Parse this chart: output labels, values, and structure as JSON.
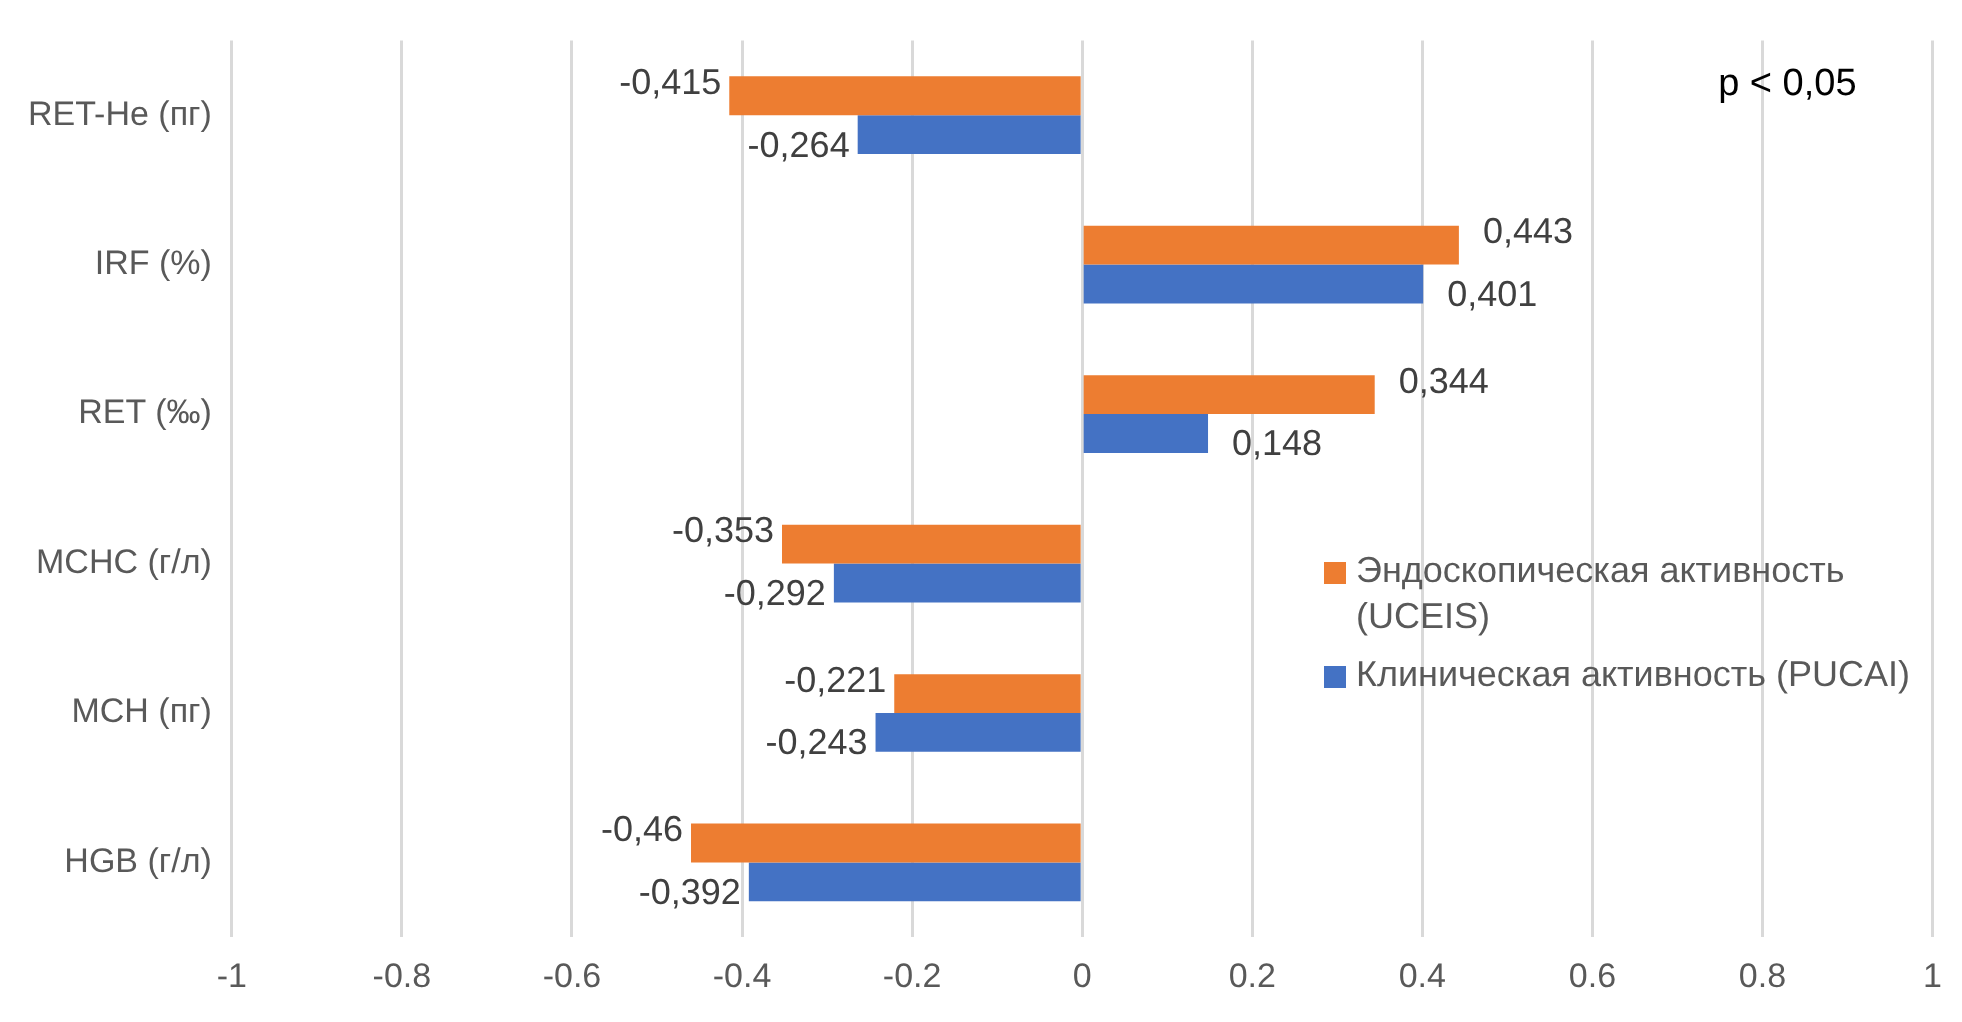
{
  "chart_data": {
    "type": "bar",
    "orientation": "horizontal",
    "categories": [
      "RET-He (пг)",
      "IRF (%)",
      "RET (‰)",
      "MCHC (г/л)",
      "MCH (пг)",
      "HGB (г/л)"
    ],
    "series": [
      {
        "name": "Эндоскопическая активность (UCEIS)",
        "color": "#ed7d31",
        "values": [
          -0.415,
          0.443,
          0.344,
          -0.353,
          -0.221,
          -0.46
        ],
        "value_labels": [
          "-0,415",
          "0,443",
          "0,344",
          "-0,353",
          "-0,221",
          "-0,46"
        ]
      },
      {
        "name": "Клиническая активность (PUCAI)",
        "color": "#4472c4",
        "values": [
          -0.264,
          0.401,
          0.148,
          -0.292,
          -0.243,
          -0.392
        ],
        "value_labels": [
          "-0,264",
          "0,401",
          "0,148",
          "-0,292",
          "-0,243",
          "-0,392"
        ]
      }
    ],
    "xlim": [
      -1,
      1
    ],
    "xticks": [
      -1,
      -0.8,
      -0.6,
      -0.4,
      -0.2,
      0,
      0.2,
      0.4,
      0.6,
      0.8,
      1
    ],
    "grid": "x",
    "legend": "right",
    "annotations": [
      "p < 0,05"
    ]
  }
}
